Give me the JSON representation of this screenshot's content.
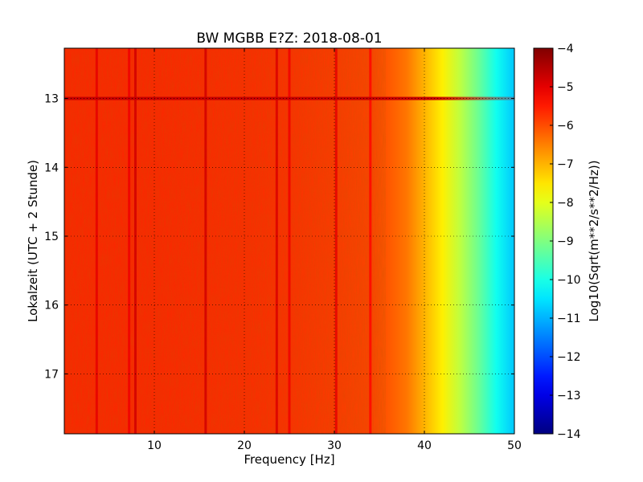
{
  "chart_data": {
    "type": "heatmap",
    "title": "BW MGBB E?Z: 2018-08-01",
    "xlabel": "Frequency [Hz]",
    "ylabel": "Lokalzeit (UTC + 2 Stunde)",
    "xlim": [
      0,
      50
    ],
    "ylim": [
      12.27,
      17.87
    ],
    "y_inverted": true,
    "xticks": [
      10,
      20,
      30,
      40,
      50
    ],
    "xtick_labels": [
      "10",
      "20",
      "30",
      "40",
      "50"
    ],
    "yticks": [
      13,
      14,
      15,
      16,
      17
    ],
    "ytick_labels": [
      "13",
      "14",
      "15",
      "16",
      "17"
    ],
    "grid": true,
    "colormap": "jet",
    "colorbar": {
      "label": "Log10(Sqrt(m**2/s**2/Hz))",
      "range": [
        -14,
        -4
      ],
      "ticks": [
        -4,
        -5,
        -6,
        -7,
        -8,
        -9,
        -10,
        -11,
        -12,
        -13,
        -14
      ],
      "tick_labels": [
        "−4",
        "−5",
        "−6",
        "−7",
        "−8",
        "−9",
        "−10",
        "−11",
        "−12",
        "−13",
        "−14"
      ]
    },
    "spectrum_profile": {
      "frequency_hz": [
        0,
        10,
        20,
        25,
        30,
        34,
        36,
        38,
        40,
        42,
        44,
        46,
        48,
        50
      ],
      "log10_value": [
        -5.6,
        -5.6,
        -5.65,
        -5.7,
        -5.8,
        -5.9,
        -6.1,
        -6.4,
        -7.0,
        -7.6,
        -8.4,
        -9.2,
        -10.1,
        -10.8
      ]
    },
    "vertical_lines": [
      {
        "frequency_hz": 3.6,
        "log10_value": -5.0
      },
      {
        "frequency_hz": 7.2,
        "log10_value": -5.1
      },
      {
        "frequency_hz": 7.9,
        "log10_value": -4.8
      },
      {
        "frequency_hz": 15.7,
        "log10_value": -4.8
      },
      {
        "frequency_hz": 23.6,
        "log10_value": -4.9
      },
      {
        "frequency_hz": 25.0,
        "log10_value": -5.1
      },
      {
        "frequency_hz": 30.2,
        "log10_value": -5.0
      },
      {
        "frequency_hz": 34.0,
        "log10_value": -5.3
      }
    ],
    "horizontal_lines": [
      {
        "time_h": 13.0,
        "log10_value": -4.7,
        "freq_end_hz": 50
      }
    ]
  }
}
